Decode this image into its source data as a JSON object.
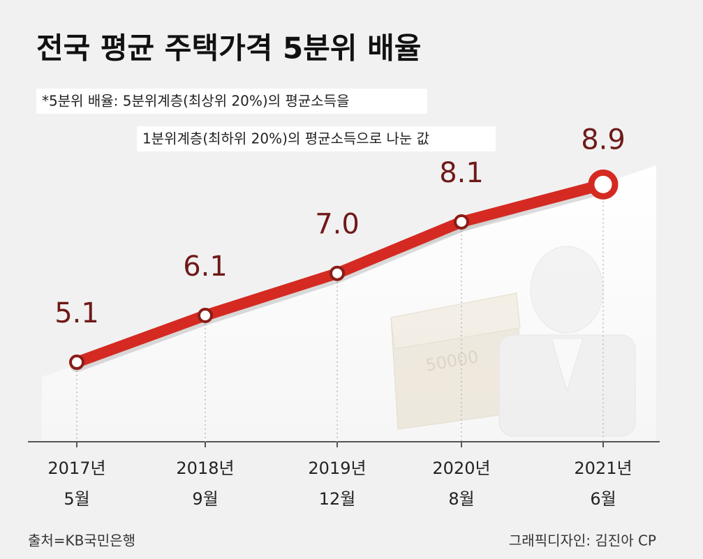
{
  "chart_data": {
    "type": "line",
    "title": "전국 평균 주택가격 5분위 배율",
    "notes": [
      "*5분위 배율: 5분위계층(최상위 20%)의 평균소득을",
      "1분위계층(최하위 20%)의 평균소득으로 나눈 값"
    ],
    "categories": [
      [
        "2017년",
        "5월"
      ],
      [
        "2018년",
        "9월"
      ],
      [
        "2019년",
        "12월"
      ],
      [
        "2020년",
        "8월"
      ],
      [
        "2021년",
        "6월"
      ]
    ],
    "values": [
      5.1,
      6.1,
      7.0,
      8.1,
      8.9
    ],
    "value_labels": [
      "5.1",
      "6.1",
      "7.0",
      "8.1",
      "8.9"
    ],
    "color": "#d42a22",
    "ylim": [
      3.4,
      9.8
    ],
    "source": "출처=KB국민은행",
    "credit": "그래픽디자인: 김진아 CP"
  }
}
